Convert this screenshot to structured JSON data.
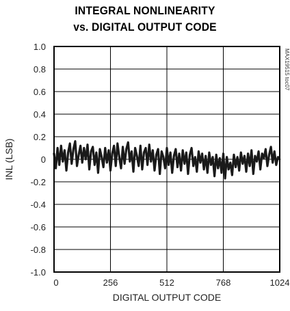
{
  "chart_data": {
    "type": "line",
    "title_line1": "INTEGRAL NONLINEARITY",
    "title_line2": "vs. DIGITAL OUTPUT CODE",
    "xlabel": "DIGITAL OUTPUT CODE",
    "ylabel": "INL (LSB)",
    "figure_id": "MAX19515 toc07",
    "xlim": [
      0,
      1024
    ],
    "ylim": [
      -1.0,
      1.0
    ],
    "x_ticks": [
      0,
      256,
      512,
      768,
      1024
    ],
    "x_tick_labels": [
      "0",
      "256",
      "512",
      "768",
      "1024"
    ],
    "y_ticks": [
      1.0,
      0.8,
      0.6,
      0.4,
      0.2,
      0,
      -0.2,
      -0.4,
      -0.6,
      -0.8,
      -1.0
    ],
    "y_tick_labels": [
      "1.0",
      "0.8",
      "0.6",
      "0.4",
      "0.2",
      "0",
      "-0.2",
      "-0.4",
      "-0.6",
      "-0.8",
      "-1.0"
    ],
    "grid": true,
    "series": [
      {
        "color": "#1a1a1a",
        "x": [
          0,
          8,
          16,
          24,
          32,
          40,
          48,
          56,
          64,
          72,
          80,
          88,
          96,
          104,
          112,
          120,
          128,
          136,
          144,
          152,
          160,
          168,
          176,
          184,
          192,
          200,
          208,
          216,
          224,
          232,
          240,
          248,
          256,
          264,
          272,
          280,
          288,
          296,
          304,
          312,
          320,
          328,
          336,
          344,
          352,
          360,
          368,
          376,
          384,
          392,
          400,
          408,
          416,
          424,
          432,
          440,
          448,
          456,
          464,
          472,
          480,
          488,
          496,
          504,
          512,
          520,
          528,
          536,
          544,
          552,
          560,
          568,
          576,
          584,
          592,
          600,
          608,
          616,
          624,
          632,
          640,
          648,
          656,
          664,
          672,
          680,
          688,
          696,
          704,
          712,
          720,
          728,
          736,
          744,
          752,
          760,
          768,
          776,
          784,
          792,
          800,
          808,
          816,
          824,
          832,
          840,
          848,
          856,
          864,
          872,
          880,
          888,
          896,
          904,
          912,
          920,
          928,
          936,
          944,
          952,
          960,
          968,
          976,
          984,
          992,
          1000,
          1008,
          1016,
          1023
        ],
        "values": [
          0.05,
          -0.08,
          0.1,
          -0.05,
          0.12,
          -0.02,
          0.08,
          -0.1,
          0.06,
          0.14,
          -0.04,
          0.09,
          0.16,
          -0.06,
          0.04,
          0.12,
          -0.03,
          0.1,
          0.0,
          0.13,
          -0.09,
          0.07,
          0.11,
          -0.05,
          0.06,
          -0.12,
          0.09,
          0.02,
          -0.07,
          0.1,
          -0.03,
          0.08,
          -0.1,
          0.05,
          0.12,
          -0.06,
          0.14,
          0.02,
          -0.08,
          0.11,
          -0.04,
          0.09,
          0.15,
          -0.02,
          0.07,
          -0.11,
          0.1,
          0.03,
          -0.06,
          0.12,
          -0.09,
          0.06,
          0.1,
          -0.05,
          0.13,
          -0.02,
          0.08,
          -0.1,
          0.04,
          0.09,
          -0.13,
          0.07,
          0.02,
          -0.08,
          0.1,
          -0.05,
          0.06,
          -0.12,
          0.03,
          0.09,
          -0.07,
          0.05,
          -0.1,
          0.08,
          -0.04,
          0.06,
          -0.13,
          0.04,
          0.1,
          -0.06,
          0.02,
          -0.11,
          0.07,
          -0.03,
          0.05,
          -0.09,
          0.03,
          -0.12,
          0.06,
          -0.05,
          0.02,
          -0.15,
          0.04,
          -0.08,
          0.01,
          -0.12,
          0.05,
          -0.17,
          0.02,
          -0.09,
          -0.03,
          -0.14,
          0.04,
          -0.07,
          0.02,
          -0.1,
          0.06,
          -0.04,
          0.03,
          -0.11,
          0.05,
          -0.06,
          0.08,
          -0.13,
          0.03,
          -0.02,
          0.07,
          -0.09,
          0.05,
          0.01,
          0.09,
          -0.06,
          0.04,
          0.11,
          -0.03,
          0.07,
          -0.05,
          0.02,
          0.0
        ]
      }
    ]
  }
}
